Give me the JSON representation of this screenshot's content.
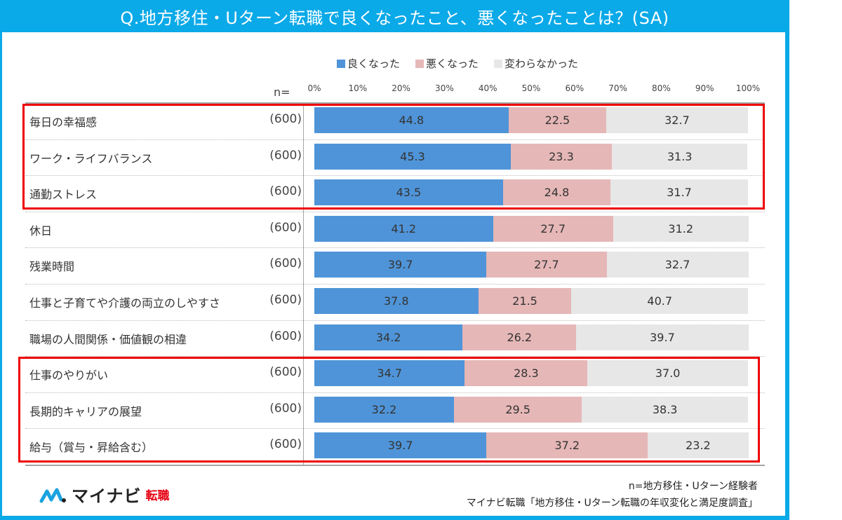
{
  "title": "Q.地方移住・Uターン転職で良くなったこと、悪くなったことは？(SA)",
  "n_header": "n=",
  "footer": {
    "note1": "n=地方移住・Uターン経験者",
    "note2": "マイナビ転職「地方移住・Uターン転職の年収変化と満足度調査」",
    "logo_main": "マイナビ",
    "logo_sub": "転職"
  },
  "colors": {
    "frame": "#0aa9e8",
    "good": "#4f94d8",
    "bad": "#e6b7b7",
    "same": "#e7e7e7",
    "highlight": "#ee0000",
    "logo_mark": "#1aa3e0"
  },
  "chart_data": {
    "type": "bar",
    "orientation": "horizontal-stacked-100",
    "title": "Q.地方移住・Uターン転職で良くなったこと、悪くなったことは？(SA)",
    "xlabel": "",
    "ylabel": "",
    "xlim": [
      0,
      100
    ],
    "x_ticks": [
      "0%",
      "10%",
      "20%",
      "30%",
      "40%",
      "50%",
      "60%",
      "70%",
      "80%",
      "90%",
      "100%"
    ],
    "legend_position": "top",
    "legend": [
      "良くなった",
      "悪くなった",
      "変わらなかった"
    ],
    "categories": [
      "毎日の幸福感",
      "ワーク・ライフバランス",
      "通勤ストレス",
      "休日",
      "残業時間",
      "仕事と子育てや介護の両立のしやすさ",
      "職場の人間関係・価値観の相違",
      "仕事のやりがい",
      "長期的キャリアの展望",
      "給与（賞与・昇給含む）"
    ],
    "n": [
      "(600)",
      "(600)",
      "(600)",
      "(600)",
      "(600)",
      "(600)",
      "(600)",
      "(600)",
      "(600)",
      "(600)"
    ],
    "series": [
      {
        "name": "良くなった",
        "values": [
          44.8,
          45.3,
          43.5,
          41.2,
          39.7,
          37.8,
          34.2,
          34.7,
          32.2,
          39.7
        ]
      },
      {
        "name": "悪くなった",
        "values": [
          22.5,
          23.3,
          24.8,
          27.7,
          27.7,
          21.5,
          26.2,
          28.3,
          29.5,
          37.2
        ]
      },
      {
        "name": "変わらなかった",
        "values": [
          32.7,
          31.3,
          31.7,
          31.2,
          32.7,
          40.7,
          39.7,
          37.0,
          38.3,
          23.2
        ]
      }
    ],
    "highlight_groups": [
      [
        0,
        2
      ],
      [
        7,
        9
      ]
    ]
  }
}
